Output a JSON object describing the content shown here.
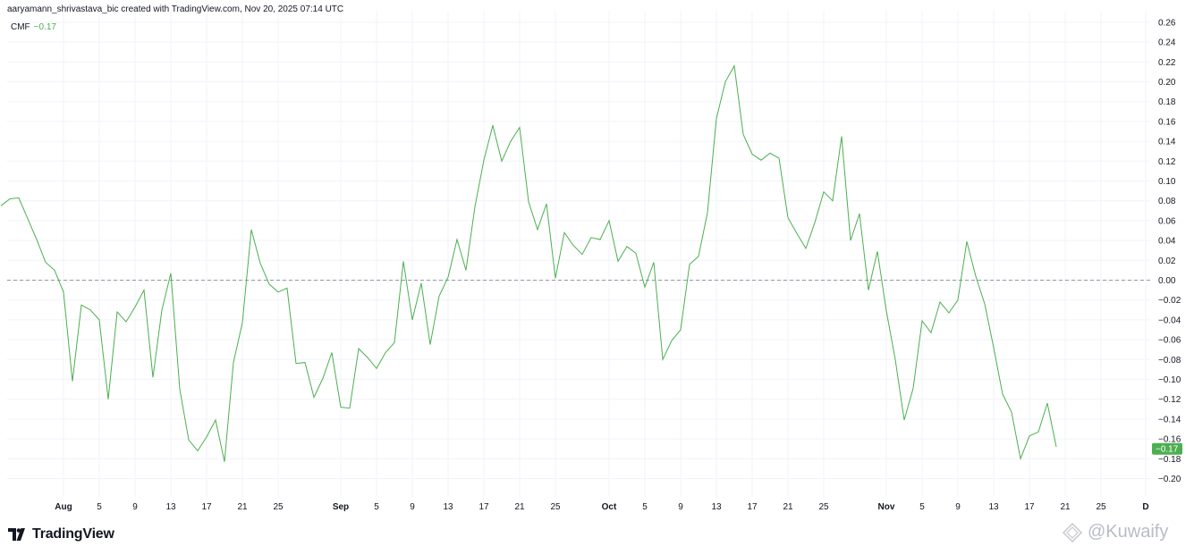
{
  "header": {
    "attribution": "aaryamann_shrivastava_bic created with TradingView.com, Nov 20, 2025 07:14 UTC"
  },
  "legend": {
    "indicator": "CMF",
    "value": "−0.17",
    "color": "#4caf50"
  },
  "branding": {
    "logo_icon": "tradingview-logo-icon",
    "name": "TradingView"
  },
  "watermark": {
    "icon": "kuwaify-logo-icon",
    "text": "@Kuwaify"
  },
  "price_label": {
    "text": "−0.17",
    "background": "#4caf50"
  },
  "chart_data": {
    "type": "line",
    "title": "",
    "xlabel": "",
    "ylabel": "",
    "ylim": [
      -0.22,
      0.27
    ],
    "zero_line": {
      "value": 0,
      "style": "dashed"
    },
    "grid": true,
    "y_ticks": [
      "0.26",
      "0.24",
      "0.22",
      "0.20",
      "0.18",
      "0.16",
      "0.14",
      "0.12",
      "0.10",
      "0.08",
      "0.06",
      "0.04",
      "0.02",
      "0.00",
      "−0.02",
      "−0.04",
      "−0.06",
      "−0.08",
      "−0.10",
      "−0.12",
      "−0.14",
      "−0.16",
      "−0.18",
      "−0.20"
    ],
    "y_tick_values": [
      0.26,
      0.24,
      0.22,
      0.2,
      0.18,
      0.16,
      0.14,
      0.12,
      0.1,
      0.08,
      0.06,
      0.04,
      0.02,
      0.0,
      -0.02,
      -0.04,
      -0.06,
      -0.08,
      -0.1,
      -0.12,
      -0.14,
      -0.16,
      -0.18,
      -0.2
    ],
    "x_ticks": [
      {
        "label": "Aug",
        "date": "2025-08-01",
        "bold": true
      },
      {
        "label": "5",
        "date": "2025-08-05"
      },
      {
        "label": "9",
        "date": "2025-08-09"
      },
      {
        "label": "13",
        "date": "2025-08-13"
      },
      {
        "label": "17",
        "date": "2025-08-17"
      },
      {
        "label": "21",
        "date": "2025-08-21"
      },
      {
        "label": "25",
        "date": "2025-08-25"
      },
      {
        "label": "Sep",
        "date": "2025-09-01",
        "bold": true
      },
      {
        "label": "5",
        "date": "2025-09-05"
      },
      {
        "label": "9",
        "date": "2025-09-09"
      },
      {
        "label": "13",
        "date": "2025-09-13"
      },
      {
        "label": "17",
        "date": "2025-09-17"
      },
      {
        "label": "21",
        "date": "2025-09-21"
      },
      {
        "label": "25",
        "date": "2025-09-25"
      },
      {
        "label": "Oct",
        "date": "2025-10-01",
        "bold": true
      },
      {
        "label": "5",
        "date": "2025-10-05"
      },
      {
        "label": "9",
        "date": "2025-10-09"
      },
      {
        "label": "13",
        "date": "2025-10-13"
      },
      {
        "label": "17",
        "date": "2025-10-17"
      },
      {
        "label": "21",
        "date": "2025-10-21"
      },
      {
        "label": "25",
        "date": "2025-10-25"
      },
      {
        "label": "Nov",
        "date": "2025-11-01",
        "bold": true
      },
      {
        "label": "5",
        "date": "2025-11-05"
      },
      {
        "label": "9",
        "date": "2025-11-09"
      },
      {
        "label": "13",
        "date": "2025-11-13"
      },
      {
        "label": "17",
        "date": "2025-11-17"
      },
      {
        "label": "21",
        "date": "2025-11-21"
      },
      {
        "label": "25",
        "date": "2025-11-25"
      },
      {
        "label": "D",
        "date": "2025-11-30",
        "bold": true
      }
    ],
    "series": [
      {
        "color": "#4caf50",
        "x": [
          "2025-07-25",
          "2025-07-26",
          "2025-07-27",
          "2025-07-28",
          "2025-07-29",
          "2025-07-30",
          "2025-07-31",
          "2025-08-01",
          "2025-08-02",
          "2025-08-03",
          "2025-08-04",
          "2025-08-05",
          "2025-08-06",
          "2025-08-07",
          "2025-08-08",
          "2025-08-09",
          "2025-08-10",
          "2025-08-11",
          "2025-08-12",
          "2025-08-13",
          "2025-08-14",
          "2025-08-15",
          "2025-08-16",
          "2025-08-17",
          "2025-08-18",
          "2025-08-19",
          "2025-08-20",
          "2025-08-21",
          "2025-08-22",
          "2025-08-23",
          "2025-08-24",
          "2025-08-25",
          "2025-08-26",
          "2025-08-27",
          "2025-08-28",
          "2025-08-29",
          "2025-08-30",
          "2025-08-31",
          "2025-09-01",
          "2025-09-02",
          "2025-09-03",
          "2025-09-04",
          "2025-09-05",
          "2025-09-06",
          "2025-09-07",
          "2025-09-08",
          "2025-09-09",
          "2025-09-10",
          "2025-09-11",
          "2025-09-12",
          "2025-09-13",
          "2025-09-14",
          "2025-09-15",
          "2025-09-16",
          "2025-09-17",
          "2025-09-18",
          "2025-09-19",
          "2025-09-20",
          "2025-09-21",
          "2025-09-22",
          "2025-09-23",
          "2025-09-24",
          "2025-09-25",
          "2025-09-26",
          "2025-09-27",
          "2025-09-28",
          "2025-09-29",
          "2025-09-30",
          "2025-10-01",
          "2025-10-02",
          "2025-10-03",
          "2025-10-04",
          "2025-10-05",
          "2025-10-06",
          "2025-10-07",
          "2025-10-08",
          "2025-10-09",
          "2025-10-10",
          "2025-10-11",
          "2025-10-12",
          "2025-10-13",
          "2025-10-14",
          "2025-10-15",
          "2025-10-16",
          "2025-10-17",
          "2025-10-18",
          "2025-10-19",
          "2025-10-20",
          "2025-10-21",
          "2025-10-22",
          "2025-10-23",
          "2025-10-24",
          "2025-10-25",
          "2025-10-26",
          "2025-10-27",
          "2025-10-28",
          "2025-10-29",
          "2025-10-30",
          "2025-10-31",
          "2025-11-01",
          "2025-11-02",
          "2025-11-03",
          "2025-11-04",
          "2025-11-05",
          "2025-11-06",
          "2025-11-07",
          "2025-11-08",
          "2025-11-09",
          "2025-11-10",
          "2025-11-11",
          "2025-11-12",
          "2025-11-13",
          "2025-11-14",
          "2025-11-15",
          "2025-11-16",
          "2025-11-17",
          "2025-11-18",
          "2025-11-19",
          "2025-11-20"
        ],
        "values": [
          0.075,
          0.082,
          0.083,
          0.062,
          0.041,
          0.018,
          0.01,
          -0.012,
          -0.102,
          -0.025,
          -0.03,
          -0.04,
          -0.12,
          -0.032,
          -0.042,
          -0.027,
          -0.01,
          -0.098,
          -0.03,
          0.007,
          -0.11,
          -0.161,
          -0.172,
          -0.158,
          -0.141,
          -0.183,
          -0.083,
          -0.043,
          0.051,
          0.017,
          -0.004,
          -0.012,
          -0.008,
          -0.084,
          -0.083,
          -0.118,
          -0.099,
          -0.073,
          -0.128,
          -0.129,
          -0.069,
          -0.078,
          -0.089,
          -0.073,
          -0.063,
          0.019,
          -0.04,
          -0.003,
          -0.065,
          -0.016,
          0.003,
          0.041,
          0.01,
          0.074,
          0.121,
          0.156,
          0.12,
          0.14,
          0.154,
          0.079,
          0.051,
          0.077,
          0.002,
          0.048,
          0.035,
          0.026,
          0.043,
          0.041,
          0.06,
          0.019,
          0.034,
          0.027,
          -0.007,
          0.018,
          -0.08,
          -0.061,
          -0.05,
          0.016,
          0.024,
          0.068,
          0.163,
          0.2,
          0.216,
          0.147,
          0.127,
          0.121,
          0.128,
          0.123,
          0.063,
          0.047,
          0.032,
          0.058,
          0.089,
          0.08,
          0.145,
          0.04,
          0.067,
          -0.01,
          0.029,
          -0.031,
          -0.08,
          -0.141,
          -0.109,
          -0.041,
          -0.053,
          -0.022,
          -0.033,
          -0.02,
          0.039,
          0.004,
          -0.024,
          -0.068,
          -0.115,
          -0.133,
          -0.18,
          -0.157,
          -0.153,
          -0.124,
          -0.168
        ]
      }
    ],
    "last_value": -0.17
  }
}
